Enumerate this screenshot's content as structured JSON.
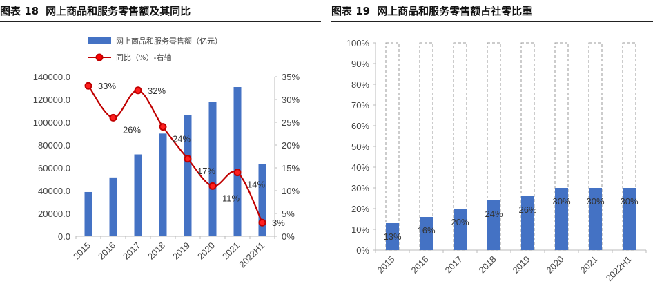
{
  "figures": [
    {
      "label": "图表 18",
      "title": "网上商品和服务零售额及其同比"
    },
    {
      "label": "图表 19",
      "title": "网上商品和服务零售额占社零比重"
    }
  ],
  "chart_data": [
    {
      "type": "bar",
      "title": "网上商品和服务零售额及其同比",
      "categories": [
        "2015",
        "2016",
        "2017",
        "2018",
        "2019",
        "2020",
        "2021",
        "2022H1"
      ],
      "series": [
        {
          "name": "网上商品和服务零售额（亿元）",
          "type": "bar",
          "axis": "left",
          "color": "#4472C4",
          "values": [
            38800,
            51600,
            71800,
            90100,
            106300,
            117600,
            130900,
            63100
          ]
        },
        {
          "name": "同比（%）-右轴",
          "type": "line",
          "axis": "right",
          "color": "#C00000",
          "values": [
            33,
            26,
            32,
            24,
            17,
            11,
            14,
            3
          ],
          "labels": [
            "33%",
            "26%",
            "32%",
            "24%",
            "17%",
            "11%",
            "14%",
            "3%"
          ]
        }
      ],
      "yticks_left": [
        "0.0",
        "20000.0",
        "40000.0",
        "60000.0",
        "80000.0",
        "100000.0",
        "120000.0",
        "140000.0"
      ],
      "yticks_right": [
        "0%",
        "5%",
        "10%",
        "15%",
        "20%",
        "25%",
        "30%",
        "35%"
      ],
      "ylim_left": [
        0,
        140000
      ],
      "ylim_right": [
        0,
        35
      ],
      "legend_position": "top",
      "grid": false
    },
    {
      "type": "bar",
      "title": "网上商品和服务零售额占社零比重",
      "categories": [
        "2015",
        "2016",
        "2017",
        "2018",
        "2019",
        "2020",
        "2021",
        "2022H1"
      ],
      "series": [
        {
          "type": "bar",
          "color": "#4472C4",
          "values": [
            13,
            16,
            20,
            24,
            26,
            30,
            30,
            30
          ],
          "labels": [
            "13%",
            "16%",
            "20%",
            "24%",
            "26%",
            "30%",
            "30%",
            "30%"
          ]
        }
      ],
      "outline_to": 100,
      "yticks": [
        "0%",
        "10%",
        "20%",
        "30%",
        "40%",
        "50%",
        "60%",
        "70%",
        "80%",
        "90%",
        "100%"
      ],
      "ylim": [
        0,
        100
      ],
      "grid": false
    }
  ]
}
